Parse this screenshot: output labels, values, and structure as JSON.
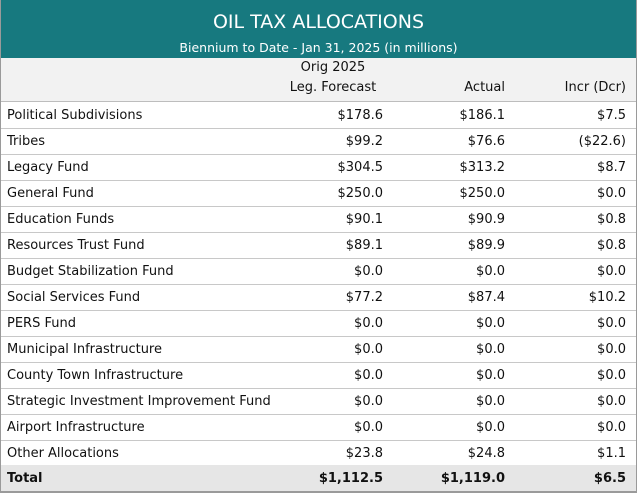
{
  "header": {
    "title": "OIL TAX ALLOCATIONS",
    "subtitle": "Biennium to Date - Jan 31, 2025 (in millions)"
  },
  "table": {
    "columns": [
      [
        "Orig 2025",
        "Leg. Forecast"
      ],
      [
        "Actual"
      ],
      [
        "Incr (Dcr)"
      ]
    ],
    "rows": [
      [
        "Political Subdivisions",
        "$178.6",
        "$186.1",
        "$7.5"
      ],
      [
        "Tribes",
        "$99.2",
        "$76.6",
        "($22.6)"
      ],
      [
        "Legacy Fund",
        "$304.5",
        "$313.2",
        "$8.7"
      ],
      [
        "General Fund",
        "$250.0",
        "$250.0",
        "$0.0"
      ],
      [
        "Education Funds",
        "$90.1",
        "$90.9",
        "$0.8"
      ],
      [
        "Resources Trust Fund",
        "$89.1",
        "$89.9",
        "$0.8"
      ],
      [
        "Budget Stabilization Fund",
        "$0.0",
        "$0.0",
        "$0.0"
      ],
      [
        "Social Services Fund",
        "$77.2",
        "$87.4",
        "$10.2"
      ],
      [
        "PERS Fund",
        "$0.0",
        "$0.0",
        "$0.0"
      ],
      [
        "Municipal Infrastructure",
        "$0.0",
        "$0.0",
        "$0.0"
      ],
      [
        "County Town Infrastructure",
        "$0.0",
        "$0.0",
        "$0.0"
      ],
      [
        "Strategic Investment Improvement Fund",
        "$0.0",
        "$0.0",
        "$0.0"
      ],
      [
        "Airport Infrastructure",
        "$0.0",
        "$0.0",
        "$0.0"
      ],
      [
        "Other Allocations",
        "$23.8",
        "$24.8",
        "$1.1"
      ]
    ],
    "total": [
      "Total",
      "$1,112.5",
      "$1,119.0",
      "$6.5"
    ]
  }
}
